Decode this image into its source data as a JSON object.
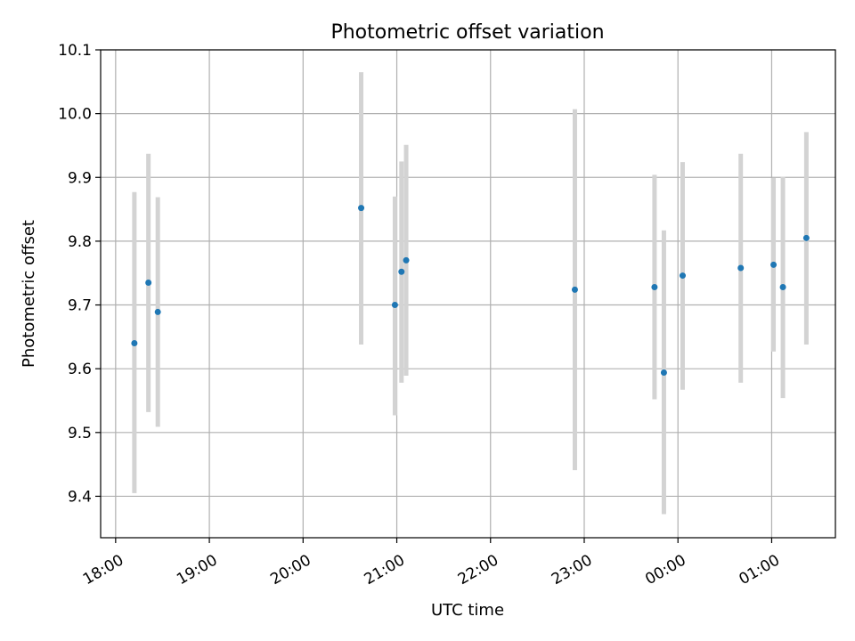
{
  "chart_data": {
    "type": "scatter",
    "title": "Photometric offset variation",
    "xlabel": "UTC time",
    "ylabel": "Photometric offset",
    "x_ticks": [
      "18:00",
      "19:00",
      "20:00",
      "21:00",
      "22:00",
      "23:00",
      "00:00",
      "01:00"
    ],
    "x_tick_hours": [
      18,
      19,
      20,
      21,
      22,
      23,
      24,
      25
    ],
    "xlim_hours": [
      17.84,
      25.68
    ],
    "y_ticks": [
      "9.4",
      "9.5",
      "9.6",
      "9.7",
      "9.8",
      "9.9",
      "10.0",
      "10.1"
    ],
    "y_tick_values": [
      9.4,
      9.5,
      9.6,
      9.7,
      9.8,
      9.9,
      10.0,
      10.1
    ],
    "ylim": [
      9.335,
      10.1
    ],
    "grid": true,
    "point_color": "#1f77b4",
    "errorbar_color": "#d3d3d3",
    "points": [
      {
        "time": "18:12",
        "hour": 18.2,
        "y": 9.64,
        "err_low": 9.405,
        "err_high": 9.877
      },
      {
        "time": "18:21",
        "hour": 18.35,
        "y": 9.735,
        "err_low": 9.532,
        "err_high": 9.937
      },
      {
        "time": "18:27",
        "hour": 18.45,
        "y": 9.689,
        "err_low": 9.509,
        "err_high": 9.869
      },
      {
        "time": "20:37",
        "hour": 20.62,
        "y": 9.852,
        "err_low": 9.638,
        "err_high": 10.065
      },
      {
        "time": "20:59",
        "hour": 20.98,
        "y": 9.7,
        "err_low": 9.527,
        "err_high": 9.87
      },
      {
        "time": "21:03",
        "hour": 21.05,
        "y": 9.752,
        "err_low": 9.578,
        "err_high": 9.925
      },
      {
        "time": "21:06",
        "hour": 21.1,
        "y": 9.77,
        "err_low": 9.589,
        "err_high": 9.951
      },
      {
        "time": "22:54",
        "hour": 22.9,
        "y": 9.724,
        "err_low": 9.441,
        "err_high": 10.007
      },
      {
        "time": "23:45",
        "hour": 23.75,
        "y": 9.728,
        "err_low": 9.552,
        "err_high": 9.904
      },
      {
        "time": "23:51",
        "hour": 23.85,
        "y": 9.594,
        "err_low": 9.372,
        "err_high": 9.817
      },
      {
        "time": "00:03",
        "hour": 24.05,
        "y": 9.746,
        "err_low": 9.567,
        "err_high": 9.924
      },
      {
        "time": "00:40",
        "hour": 24.67,
        "y": 9.758,
        "err_low": 9.578,
        "err_high": 9.937
      },
      {
        "time": "01:01",
        "hour": 25.02,
        "y": 9.763,
        "err_low": 9.627,
        "err_high": 9.899
      },
      {
        "time": "01:07",
        "hour": 25.12,
        "y": 9.728,
        "err_low": 9.554,
        "err_high": 9.901
      },
      {
        "time": "01:22",
        "hour": 25.37,
        "y": 9.805,
        "err_low": 9.638,
        "err_high": 9.971
      }
    ]
  }
}
